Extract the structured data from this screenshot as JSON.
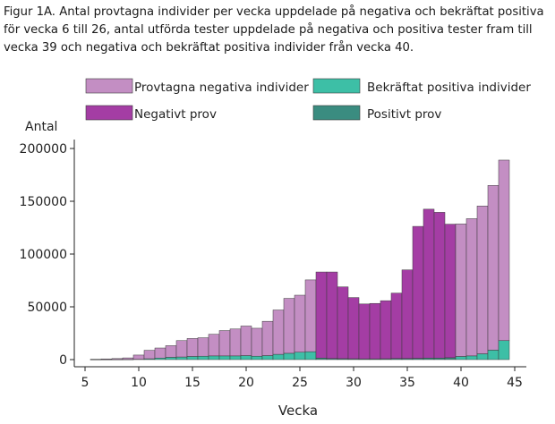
{
  "caption": "Figur 1A. Antal provtagna individer per vecka uppdelade på negativa och bekräftat positiva för vecka 6 till 26, antal utförda tester uppdelade på negativa och positiva tester fram till vecka 39 och negativa och bekräftat positiva individer från vecka 40.",
  "chart_data": {
    "type": "bar",
    "stacked": true,
    "title": "",
    "xlabel": "Vecka",
    "ylabel": "Antal",
    "xlim": [
      5,
      45
    ],
    "ylim": [
      0,
      210000
    ],
    "xticks": [
      5,
      10,
      15,
      20,
      25,
      30,
      35,
      40,
      45
    ],
    "yticks": [
      0,
      50000,
      100000,
      150000,
      200000
    ],
    "ytick_labels": [
      "0",
      "50000",
      "100000",
      "150000",
      "200000"
    ],
    "legend": [
      "Provtagna negativa individer",
      "Bekräftat positiva individer",
      "Negativt prov",
      "Positivt prov"
    ],
    "colors": {
      "provtagna_negativa": "#c38ec3",
      "bekraftat_positiva": "#3dbfa6",
      "negativt_prov": "#a43da4",
      "positivt_prov": "#3a8c80",
      "edge": "#3a3a3a"
    },
    "weeks": [
      6,
      7,
      8,
      9,
      10,
      11,
      12,
      13,
      14,
      15,
      16,
      17,
      18,
      19,
      20,
      21,
      22,
      23,
      24,
      25,
      26,
      27,
      28,
      29,
      30,
      31,
      32,
      33,
      34,
      35,
      36,
      37,
      38,
      39,
      40,
      41,
      42,
      43,
      44
    ],
    "group": [
      "ind",
      "ind",
      "ind",
      "ind",
      "ind",
      "ind",
      "ind",
      "ind",
      "ind",
      "ind",
      "ind",
      "ind",
      "ind",
      "ind",
      "ind",
      "ind",
      "ind",
      "ind",
      "ind",
      "ind",
      "ind",
      "test",
      "test",
      "test",
      "test",
      "test",
      "test",
      "test",
      "test",
      "test",
      "test",
      "test",
      "test",
      "test",
      "ind",
      "ind",
      "ind",
      "ind",
      "ind"
    ],
    "negative": [
      300,
      600,
      900,
      1500,
      4000,
      8000,
      9500,
      11000,
      15500,
      17000,
      17500,
      20500,
      24000,
      25500,
      28000,
      26500,
      32500,
      42000,
      52000,
      54000,
      68000,
      81500,
      82000,
      68000,
      58000,
      52000,
      52500,
      55000,
      62000,
      84000,
      125000,
      141000,
      138000,
      126500,
      125500,
      130000,
      140000,
      156000,
      171000
    ],
    "positive": [
      20,
      50,
      80,
      120,
      300,
      800,
      1500,
      2200,
      2500,
      3000,
      3200,
      3500,
      3500,
      3500,
      3800,
      3200,
      3800,
      5000,
      6000,
      7000,
      7500,
      1500,
      1000,
      900,
      800,
      700,
      700,
      800,
      1000,
      1000,
      1200,
      1500,
      1500,
      1800,
      3000,
      3500,
      5500,
      9000,
      18000
    ]
  }
}
